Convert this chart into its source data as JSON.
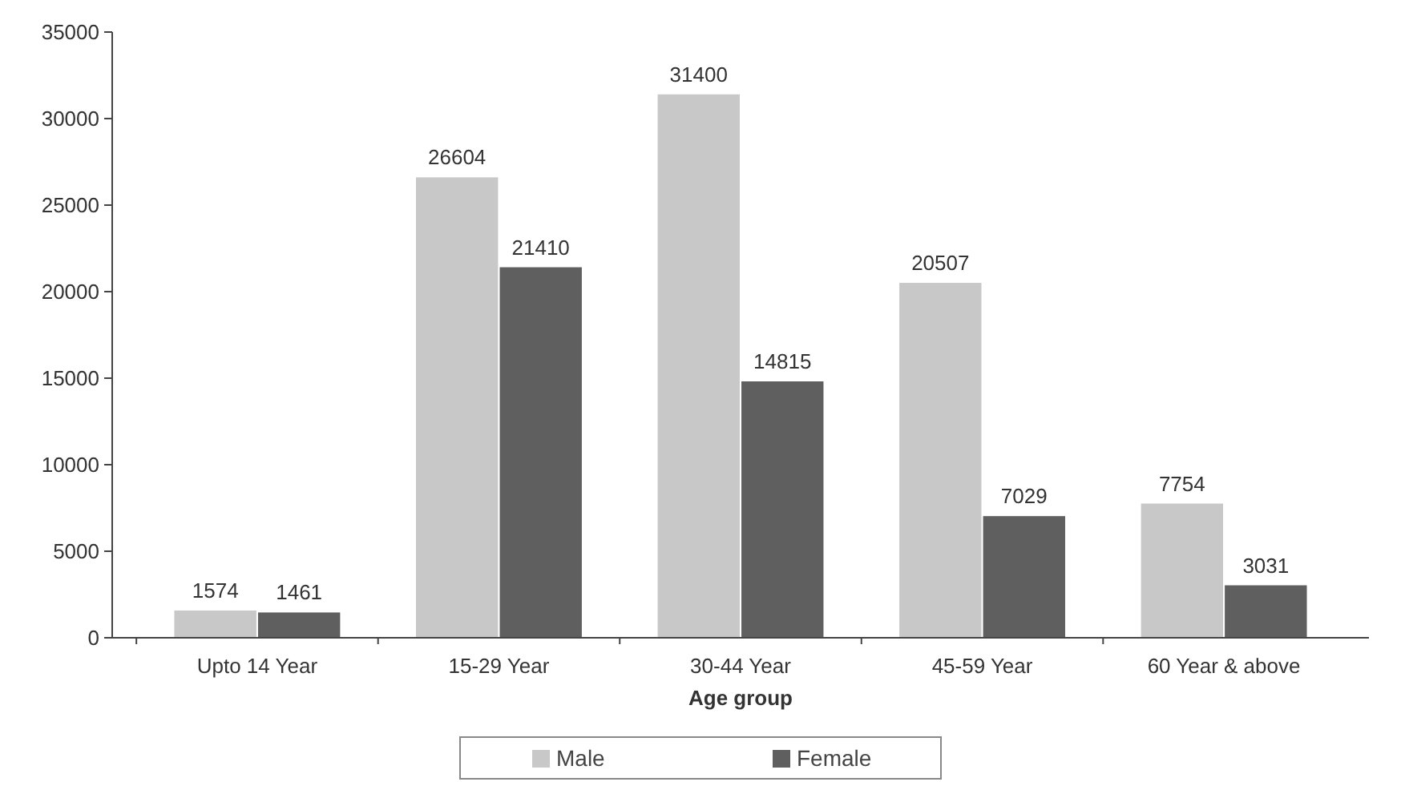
{
  "chart_data": {
    "type": "bar",
    "xlabel": "Age group",
    "categories": [
      "Upto 14 Year",
      "15-29 Year",
      "30-44 Year",
      "45-59 Year",
      "60 Year & above"
    ],
    "series": [
      {
        "name": "Male",
        "color": "#c8c8c8",
        "values": [
          1574,
          26604,
          31400,
          20507,
          7754
        ]
      },
      {
        "name": "Female",
        "color": "#5f5f5f",
        "values": [
          1461,
          21410,
          14815,
          7029,
          3031
        ]
      }
    ],
    "ylim": [
      0,
      35000
    ],
    "yticks": [
      0,
      5000,
      10000,
      15000,
      20000,
      25000,
      30000,
      35000
    ],
    "grid": false,
    "legend": "bottom",
    "data_labels": true
  }
}
